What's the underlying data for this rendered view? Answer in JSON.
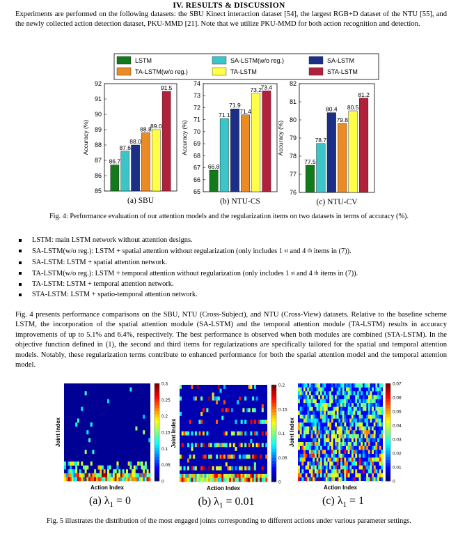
{
  "section": {
    "heading": "IV.      RESULTS & DISCUSSION",
    "intro": "Experiments are performed on the following datasets: the SBU Kinect interaction dataset [54], the largest RGB+D dataset of the NTU [55], and the newly collected action detection dataset, PKU-MMD [21]. Note that we utilize PKU-MMD for both action recognition and detection."
  },
  "figure4": {
    "legend": [
      {
        "label": "LSTM",
        "color": "#127a1b"
      },
      {
        "label": "SA-LSTM(w/o reg.)",
        "color": "#3cc5c8"
      },
      {
        "label": "SA-LSTM",
        "color": "#1c2f86"
      },
      {
        "label": "TA-LSTM(w/o reg.)",
        "color": "#ea8b26"
      },
      {
        "label": "TA-LSTM",
        "color": "#ffff4a"
      },
      {
        "label": "STA-LSTM",
        "color": "#b0213b"
      }
    ],
    "caption": "Fig. 4: Performance evaluation of our attention models and the regularization items on two datasets in terms of accuracy (%)."
  },
  "chart_data": [
    {
      "type": "bar",
      "title": "(a) SBU",
      "ylabel": "Accuracy (%)",
      "ylim": [
        85,
        92
      ],
      "yticks": [
        "85",
        "86",
        "87",
        "88",
        "89",
        "90",
        "91",
        "92"
      ],
      "categories": [
        "LSTM",
        "SA-LSTM(w/o reg.)",
        "SA-LSTM",
        "TA-LSTM(w/o reg.)",
        "TA-LSTM",
        "STA-LSTM"
      ],
      "values": [
        86.7,
        87.6,
        88.0,
        88.8,
        89.0,
        91.5
      ],
      "labels": [
        "86.7",
        "87.6",
        "88.0",
        "88.8",
        "89.0",
        "91.5"
      ]
    },
    {
      "type": "bar",
      "title": "(b) NTU-CS",
      "ylabel": "Accuracy (%)",
      "ylim": [
        65,
        74
      ],
      "yticks": [
        "65",
        "66",
        "67",
        "68",
        "69",
        "70",
        "71",
        "72",
        "73",
        "74"
      ],
      "categories": [
        "LSTM",
        "SA-LSTM(w/o reg.)",
        "SA-LSTM",
        "TA-LSTM(w/o reg.)",
        "TA-LSTM",
        "STA-LSTM"
      ],
      "values": [
        66.8,
        71.1,
        71.9,
        71.4,
        73.2,
        73.4
      ],
      "labels": [
        "66.8",
        "71.1",
        "71.9",
        "71.4",
        "73.2",
        "73.4"
      ]
    },
    {
      "type": "bar",
      "title": "(c) NTU-CV",
      "ylabel": "Accuracy (%)",
      "ylim": [
        76,
        82
      ],
      "yticks": [
        "76",
        "77",
        "78",
        "79",
        "80",
        "81",
        "82"
      ],
      "categories": [
        "LSTM",
        "SA-LSTM(w/o reg.)",
        "SA-LSTM",
        "TA-LSTM(w/o reg.)",
        "TA-LSTM",
        "STA-LSTM"
      ],
      "values": [
        77.5,
        78.7,
        80.4,
        79.8,
        80.5,
        81.2
      ],
      "labels": [
        "77.5",
        "78.7",
        "80.4",
        "79.8",
        "80.5",
        "81.2"
      ]
    },
    {
      "type": "heatmap",
      "xlabel": "Action Index",
      "ylabel": "Joint Index",
      "caption_lhs": "(a) λ",
      "caption_sub": "1",
      "caption_rhs": " = 0",
      "colorbar": {
        "max": 0.3,
        "ticks": [
          "0",
          "0.05",
          "0.1",
          "0.15",
          "0.2",
          "0.25",
          "0.3"
        ]
      }
    },
    {
      "type": "heatmap",
      "xlabel": "Action Index",
      "ylabel": "Joint Index",
      "caption_lhs": "(b) λ",
      "caption_sub": "1",
      "caption_rhs": " = 0.01",
      "colorbar": {
        "max": 0.2,
        "ticks": [
          "0",
          "0.05",
          "0.1",
          "0.15",
          "0.2"
        ]
      }
    },
    {
      "type": "heatmap",
      "xlabel": "Action Index",
      "ylabel": "Joint Index",
      "caption_lhs": "(c) λ",
      "caption_sub": "1",
      "caption_rhs": " = 1",
      "colorbar": {
        "max": 0.07,
        "ticks": [
          "0",
          "0.01",
          "0.02",
          "0.03",
          "0.04",
          "0.05",
          "0.06",
          "0.07"
        ]
      }
    }
  ],
  "definitions": [
    {
      "text": "LSTM: main LSTM network without attention designs."
    },
    {
      "pre": "SA-LSTM(w/o reg.): LSTM + spatial attention without regularization (only includes 1 ",
      "s1": "st",
      "mid": " and 4 ",
      "s2": "th",
      "post": " items in (7))."
    },
    {
      "text": "SA-LSTM: LSTM + spatial attention network."
    },
    {
      "pre": "TA-LSTM(w/o reg.): LSTM + temporal attention without regularization (only includes 1 ",
      "s1": "st",
      "mid": " and 4 ",
      "s2": "th",
      "post": " items in (7))."
    },
    {
      "text": "TA-LSTM: LSTM + temporal attention network."
    },
    {
      "text": "STA-LSTM: LSTM + spatio-temporal attention network."
    }
  ],
  "discussion": "Fig. 4 presents performance comparisons on the SBU, NTU (Cross-Subject), and NTU (Cross-View) datasets. Relative to the baseline scheme LSTM, the incorporation of the spatial attention module (SA-LSTM) and the temporal attention module (TA-LSTM) results in accuracy improvements of up to 5.1% and 6.4%, respectively. The best performance is observed when both modules are combined (STA-LSTM). In the objective function defined in (1), the second and third items for regularizations are specifically tailored for the spatial and temporal attention models. Notably, these regularization terms contribute to enhanced performance for both the spatial attention model and the temporal attention model.",
  "figure5": {
    "caption": "Fig. 5 illustrates the distribution of the most engaged joints corresponding to different actions under various parameter settings."
  }
}
